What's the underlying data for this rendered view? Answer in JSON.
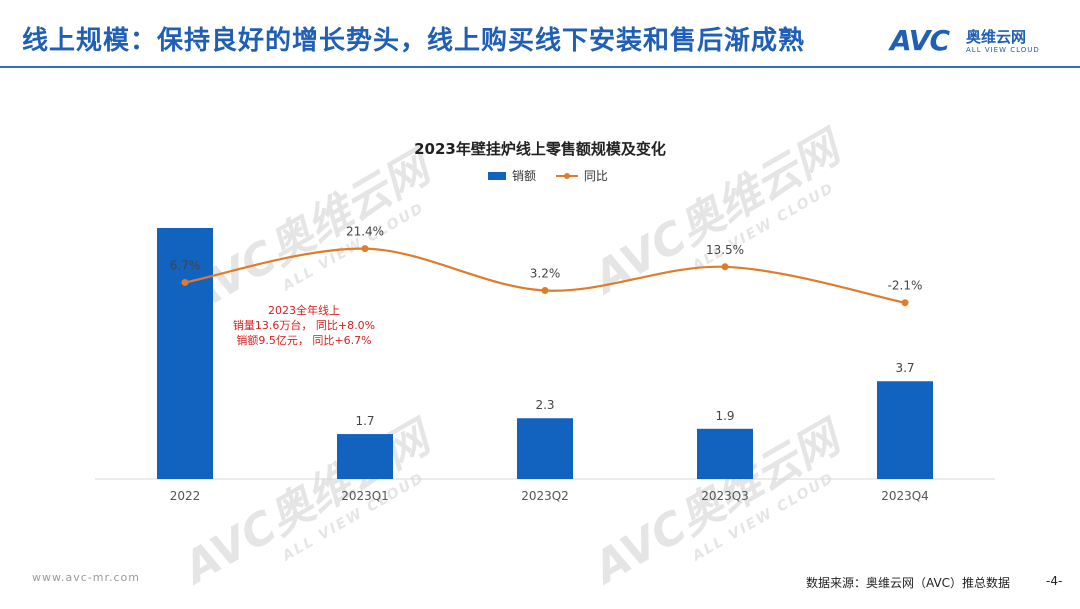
{
  "header": {
    "title": "线上规模：保持良好的增长势头，线上购买线下安装和售后渐成熟",
    "logo_avc": "AVC",
    "logo_cn": "奥维云网",
    "logo_en": "ALL VIEW CLOUD"
  },
  "watermark": {
    "brand": "AVC奥维云网",
    "tagline": "ALL VIEW CLOUD"
  },
  "chart_data": {
    "type": "bar",
    "title": "2023年壁挂炉线上零售额规模及变化",
    "categories": [
      "2022",
      "2023Q1",
      "2023Q2",
      "2023Q3",
      "2023Q4"
    ],
    "series": [
      {
        "name": "销额",
        "type": "bar",
        "values": [
          9.5,
          1.7,
          2.3,
          1.9,
          3.7
        ],
        "labels": [
          "",
          "1.7",
          "2.3",
          "1.9",
          "3.7"
        ]
      },
      {
        "name": "同比",
        "type": "line",
        "values": [
          6.7,
          21.4,
          3.2,
          13.5,
          -2.1
        ],
        "labels": [
          "6.7%",
          "21.4%",
          "3.2%",
          "13.5%",
          "-2.1%"
        ]
      }
    ],
    "legend": "top-center",
    "grid": false,
    "colors": {
      "bar": "#1262c0",
      "line": "#e07b2a"
    }
  },
  "annotation": {
    "lines": [
      "2023全年线上",
      "销量13.6万台， 同比+8.0%",
      "销额9.5亿元， 同比+6.7%"
    ],
    "color": "#d62020"
  },
  "footer": {
    "url": "www.avc-mr.com",
    "source": "数据来源：奥维云网（AVC）推总数据",
    "page": "-4-"
  }
}
